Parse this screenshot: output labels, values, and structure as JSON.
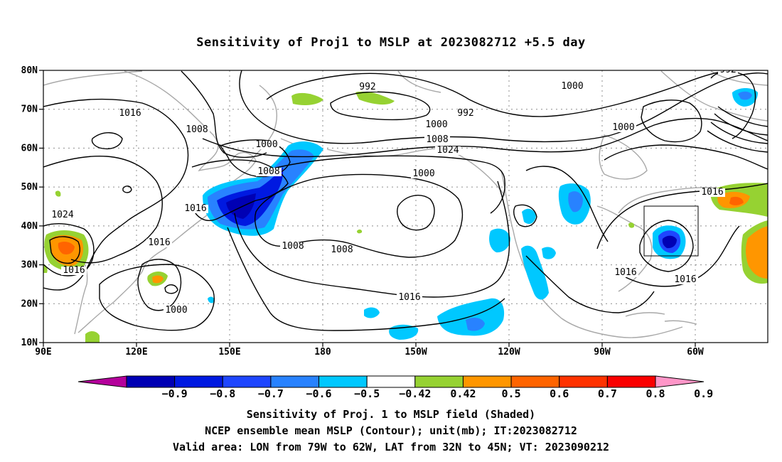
{
  "title": "Sensitivity of Proj1 to MSLP at 2023082712 +5.5 day",
  "captions": {
    "line1": "Sensitivity of Proj. 1 to MSLP field (Shaded)",
    "line2": "NCEP ensemble mean MSLP (Contour); unit(mb); IT:2023082712",
    "line3": "Valid area: LON from 79W to 62W, LAT from 32N to 45N; VT: 2023090212"
  },
  "map": {
    "lat_ticks": [
      "80N",
      "70N",
      "60N",
      "50N",
      "40N",
      "30N",
      "20N",
      "10N"
    ],
    "lon_ticks": [
      "90E",
      "120E",
      "150E",
      "180",
      "150W",
      "120W",
      "90W",
      "60W"
    ],
    "valid_area": {
      "lon_min": -79,
      "lon_max": -62,
      "lat_min": 32,
      "lat_max": 45
    },
    "contour_labels": [
      "1016",
      "1008",
      "1000",
      "992",
      "992",
      "1000",
      "992",
      "1000",
      "1008",
      "1000",
      "1008",
      "1016",
      "1024",
      "1000",
      "1008",
      "1008",
      "1016",
      "1024",
      "1016",
      "1016",
      "1000",
      "1016",
      "1016",
      "1016"
    ]
  },
  "colorbar": {
    "labels": [
      "-0.9",
      "-0.8",
      "-0.7",
      "-0.6",
      "-0.5",
      "-0.42",
      "0.42",
      "0.5",
      "0.6",
      "0.7",
      "0.8",
      "0.9"
    ],
    "colors": [
      "#b4009b",
      "#0000b4",
      "#0019e1",
      "#1e46ff",
      "#2882ff",
      "#00c8ff",
      "#ffffff",
      "#96d232",
      "#ff9600",
      "#ff6400",
      "#ff3200",
      "#fa0000",
      "#ff96c8"
    ]
  }
}
